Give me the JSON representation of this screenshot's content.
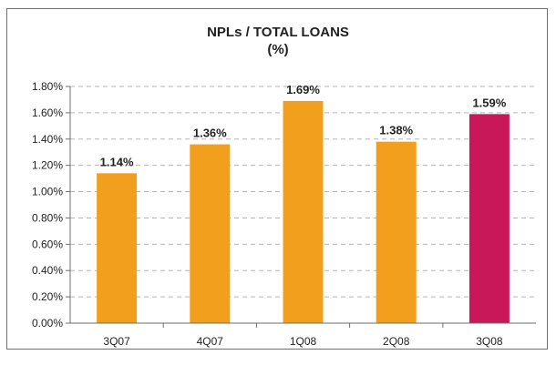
{
  "chart_data": {
    "type": "bar",
    "title": "NPLs / TOTAL LOANS",
    "subtitle": "(%)",
    "categories": [
      "3Q07",
      "4Q07",
      "1Q08",
      "2Q08",
      "3Q08"
    ],
    "values": [
      1.14,
      1.36,
      1.69,
      1.38,
      1.59
    ],
    "value_labels": [
      "1.14%",
      "1.36%",
      "1.69%",
      "1.38%",
      "1.59%"
    ],
    "colors": [
      "#F29F1E",
      "#F29F1E",
      "#F29F1E",
      "#F29F1E",
      "#C8185A"
    ],
    "ylim": [
      0,
      1.8
    ],
    "yticks": [
      0.0,
      0.2,
      0.4,
      0.6,
      0.8,
      1.0,
      1.2,
      1.4,
      1.6,
      1.8
    ],
    "ytick_labels": [
      "0.00%",
      "0.20%",
      "0.40%",
      "0.60%",
      "0.80%",
      "1.00%",
      "1.20%",
      "1.40%",
      "1.60%",
      "1.80%"
    ],
    "grid": true,
    "xlabel": "",
    "ylabel": ""
  }
}
